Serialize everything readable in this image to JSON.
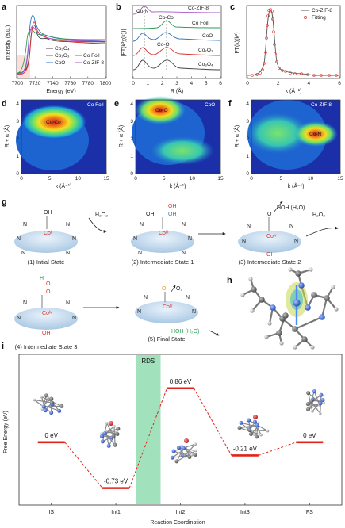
{
  "panels": {
    "a": "a",
    "b": "b",
    "c": "c",
    "d": "d",
    "e": "e",
    "f": "f",
    "g": "g",
    "h": "h",
    "i": "i"
  },
  "panel_a": {
    "ylabel": "Intensity (a.u.)",
    "xlabel": "Energy (eV)",
    "xticks": [
      "7700",
      "7720",
      "7740",
      "7760",
      "7780",
      "7800"
    ],
    "legend": [
      {
        "label": "Co₃O₄",
        "color": "#444444"
      },
      {
        "label": "Co₂O₃",
        "color": "#d8352e"
      },
      {
        "label": "CoO",
        "color": "#2f78c4"
      },
      {
        "label": "Co Foil",
        "color": "#2e9e55"
      },
      {
        "label": "Co-ZIF-8",
        "color": "#a855c8"
      }
    ]
  },
  "panel_b": {
    "ylabel": "|FT(k³χ(k))|",
    "xlabel": "R (Å)",
    "xticks": [
      "0",
      "1",
      "2",
      "3",
      "4",
      "5",
      "6"
    ],
    "annotations": [
      "Co-N",
      "Co-Co",
      "Co-O"
    ],
    "labels": [
      "Co-ZIF-8",
      "Co Foil",
      "CoO",
      "Co₂O₃",
      "Co₃O₄"
    ]
  },
  "panel_c": {
    "ylabel": "FT(k)(k³)",
    "xlabel": "k (Å⁻¹)",
    "xticks": [
      "0",
      "2",
      "4",
      "6"
    ],
    "legend": [
      {
        "label": "Co-ZIF-8",
        "color": "#555555"
      },
      {
        "label": "Fitting",
        "color": "#d8352e"
      }
    ]
  },
  "wavelet": {
    "ylabel": "R + α (Å)",
    "xlabel": "k (Å⁻¹)",
    "xticks": [
      "0",
      "5",
      "10",
      "15"
    ],
    "yticks": [
      "0",
      "1",
      "2",
      "3",
      "4"
    ],
    "maps": [
      {
        "title": "Co Foil",
        "peak_label": "Co-Co"
      },
      {
        "title": "CoO",
        "peak_label": "Co-O"
      },
      {
        "title": "Co-ZIF-8",
        "peak_label": "Co-N"
      }
    ]
  },
  "scheme": {
    "reagent_h2o2": "H₂O₂",
    "states": [
      "(1) Intial State",
      "(2) Intermediate State 1",
      "(3) Intermediate State 2",
      "(4) Intermediate State 3",
      "(5) Final State"
    ],
    "centers": [
      "Coᴵᴵ",
      "Coᴵᴵᴵ",
      "Coᴵᵛ",
      "Coᴵᵛ",
      "Coᴵᴵᴵ"
    ],
    "byproducts": [
      "HOH (H₂O)",
      "O₂",
      "HOH (H₂O)"
    ],
    "ligand_n": "N",
    "ligand_oh": "OH",
    "ligand_o": "O"
  },
  "chart_data": {
    "type": "line",
    "title": "",
    "xlabel": "Reaction Coordination",
    "ylabel": "Free Energy (eV)",
    "categories": [
      "IS",
      "Int1",
      "Int2",
      "Int3",
      "FS"
    ],
    "values": [
      0,
      -0.73,
      0.86,
      -0.21,
      0
    ],
    "value_labels": [
      "0 eV",
      "-0.73 eV",
      "0.86 eV",
      "-0.21 eV",
      "0 eV"
    ],
    "ylim": [
      -1.0,
      1.4
    ],
    "highlight_label": "RDS",
    "colors": {
      "levels": "#e0241b",
      "rds": "#90dcb0"
    }
  }
}
